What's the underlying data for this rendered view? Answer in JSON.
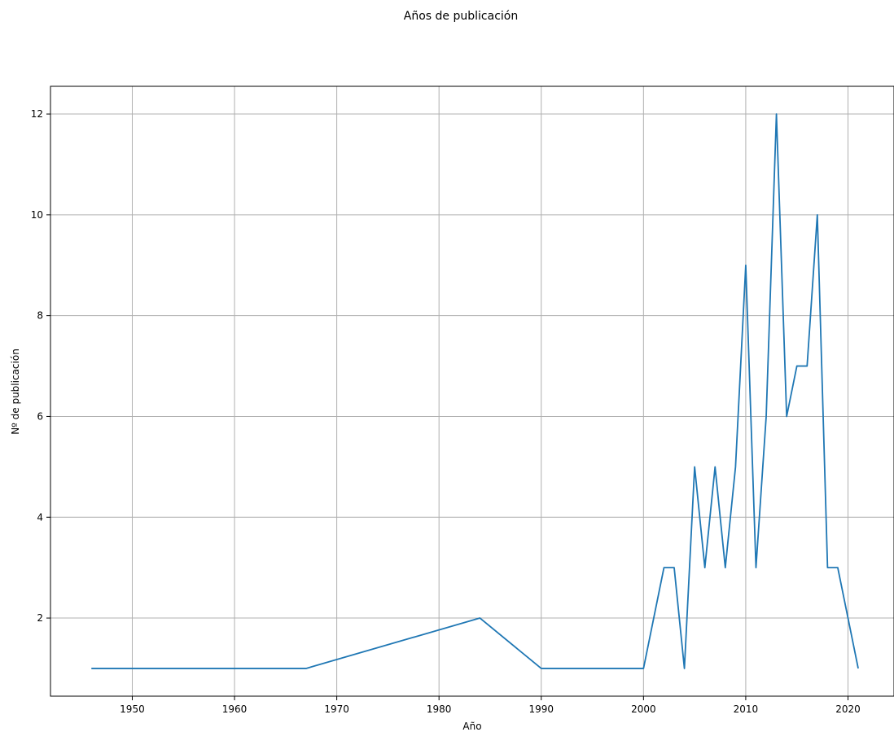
{
  "chart_data": {
    "type": "line",
    "title": "Años de publicación",
    "xlabel": "Año",
    "ylabel": "Nº de publicación",
    "xlim": [
      1942,
      2024.5
    ],
    "ylim": [
      0.45,
      12.55
    ],
    "xticks": [
      1950,
      1960,
      1970,
      1980,
      1990,
      2000,
      2010,
      2020
    ],
    "yticks": [
      2,
      4,
      6,
      8,
      10,
      12
    ],
    "grid": true,
    "series": [
      {
        "color": "#1f77b4",
        "x": [
          1946,
          1967,
          1984,
          1990,
          2000,
          2002,
          2003,
          2004,
          2005,
          2006,
          2007,
          2008,
          2009,
          2010,
          2011,
          2012,
          2013,
          2014,
          2015,
          2016,
          2017,
          2018,
          2019,
          2021
        ],
        "y": [
          1,
          1,
          2,
          1,
          1,
          3,
          3,
          1,
          5,
          3,
          5,
          3,
          5,
          9,
          3,
          6,
          12,
          6,
          7,
          7,
          10,
          3,
          3,
          1
        ]
      }
    ]
  }
}
